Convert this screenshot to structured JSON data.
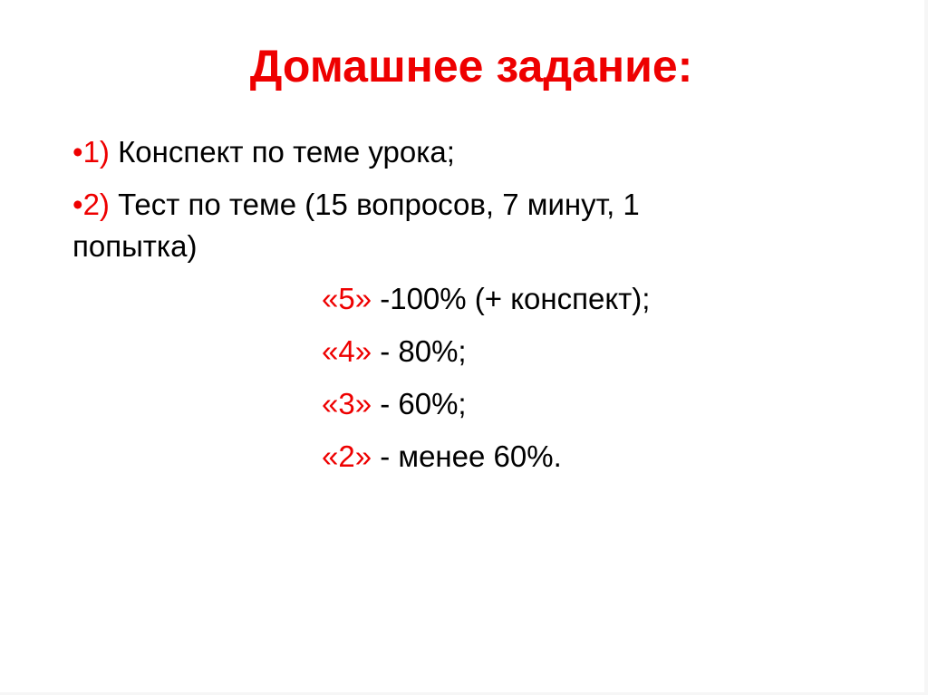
{
  "title": "Домашнее задание:",
  "items": [
    {
      "bullet": "•",
      "number": "1)",
      "text": "Конспект по теме урока;"
    },
    {
      "bullet": "•",
      "number": "2)",
      "text": "Тест по теме (15 вопросов, 7 минут, 1",
      "continuation": "попытка)"
    }
  ],
  "grades": [
    {
      "grade": "«5»",
      "text": " -100% (+ конспект);"
    },
    {
      "grade": "«4»",
      "text": " - 80%;"
    },
    {
      "grade": "«3»",
      "text": " - 60%;"
    },
    {
      "grade": "«2»",
      "text": " - менее 60%."
    }
  ],
  "colors": {
    "accent": "#ee0000",
    "text": "#000000"
  }
}
